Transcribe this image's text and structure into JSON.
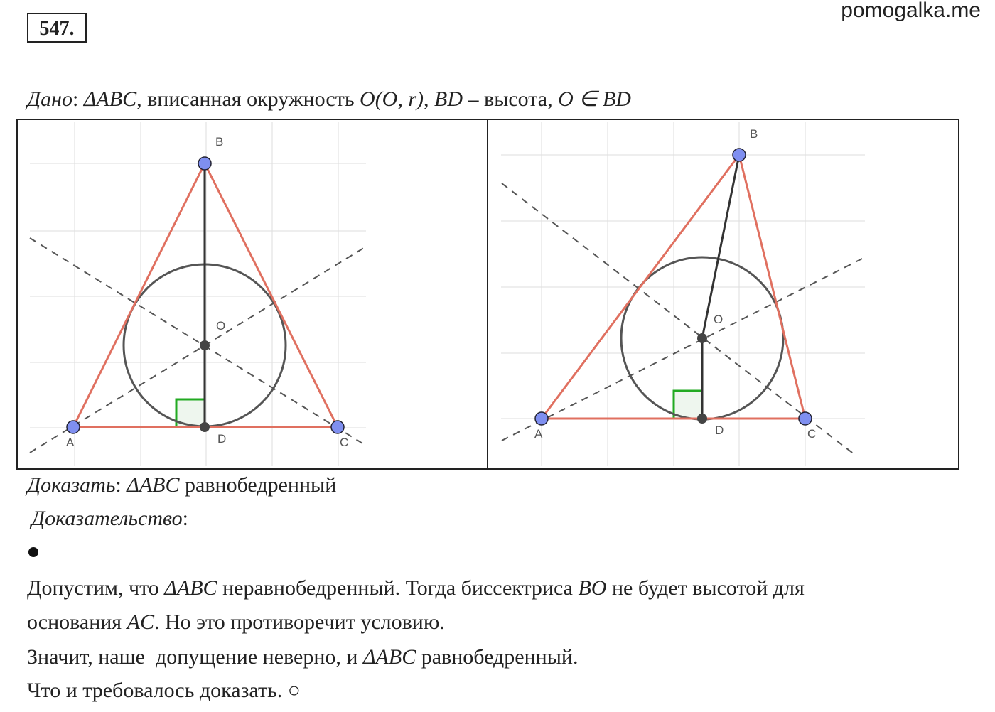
{
  "header": {
    "number": "547.",
    "site": "pomogalka.me"
  },
  "given": [
    {
      "text": "Дано",
      "italic": true
    },
    {
      "text": ": "
    },
    {
      "text": "ΔABC",
      "italic": true
    },
    {
      "text": ", вписанная окружность "
    },
    {
      "text": "O(O, r)",
      "italic": true
    },
    {
      "text": ", "
    },
    {
      "text": "BD",
      "italic": true
    },
    {
      "text": " – высота, "
    },
    {
      "text": "O ∈ BD",
      "italic": true
    }
  ],
  "figures": [
    {
      "labels": [
        "A",
        "B",
        "C",
        "O",
        "D"
      ]
    },
    {
      "labels": [
        "A",
        "B",
        "C",
        "O",
        "D"
      ]
    }
  ],
  "prove": [
    {
      "text": "Доказать",
      "italic": true
    },
    {
      "text": ": "
    },
    {
      "text": "ΔABC",
      "italic": true
    },
    {
      "text": " равнобедренный"
    }
  ],
  "proof_heading": [
    {
      "text": "Доказательство",
      "italic": true
    },
    {
      "text": ":"
    }
  ],
  "proof": [
    [
      {
        "text": "Допустим, что "
      },
      {
        "text": "ΔABC",
        "italic": true
      },
      {
        "text": " неравнобедренный. Тогда биссектриса "
      },
      {
        "text": "BO",
        "italic": true
      },
      {
        "text": " не будет высотой для"
      }
    ],
    [
      {
        "text": "основания "
      },
      {
        "text": "AC",
        "italic": true
      },
      {
        "text": ". Но это противоречит условию."
      }
    ],
    [
      {
        "text": "Значит, наше  допущение неверно, и "
      },
      {
        "text": "ΔABC",
        "italic": true
      },
      {
        "text": " равнобедренный."
      }
    ],
    [
      {
        "text": "Что и требовалось доказать. ○"
      }
    ]
  ]
}
